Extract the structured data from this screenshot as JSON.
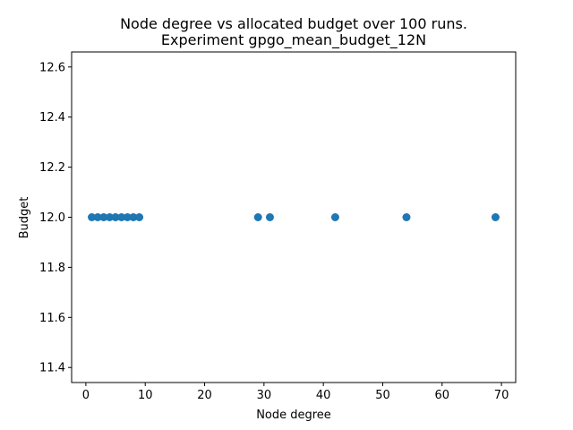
{
  "chart_data": {
    "type": "scatter",
    "title_line1": "Node degree vs allocated budget over 100 runs.",
    "title_line2": "Experiment gpgo_mean_budget_12N",
    "xlabel": "Node degree",
    "ylabel": "Budget",
    "xlim": [
      -2.4,
      72.4
    ],
    "ylim": [
      11.34,
      12.66
    ],
    "xticks": [
      "0",
      "10",
      "20",
      "30",
      "40",
      "50",
      "60",
      "70"
    ],
    "yticks": [
      "11.4",
      "11.6",
      "11.8",
      "12.0",
      "12.2",
      "12.4",
      "12.6"
    ],
    "grid": false,
    "marker_color": "#1f77b4",
    "x": [
      1,
      2,
      3,
      4,
      5,
      6,
      7,
      8,
      9,
      29,
      31,
      42,
      54,
      69
    ],
    "y": [
      12.0,
      12.0,
      12.0,
      12.0,
      12.0,
      12.0,
      12.0,
      12.0,
      12.0,
      12.0,
      12.0,
      12.0,
      12.0,
      12.0
    ]
  }
}
